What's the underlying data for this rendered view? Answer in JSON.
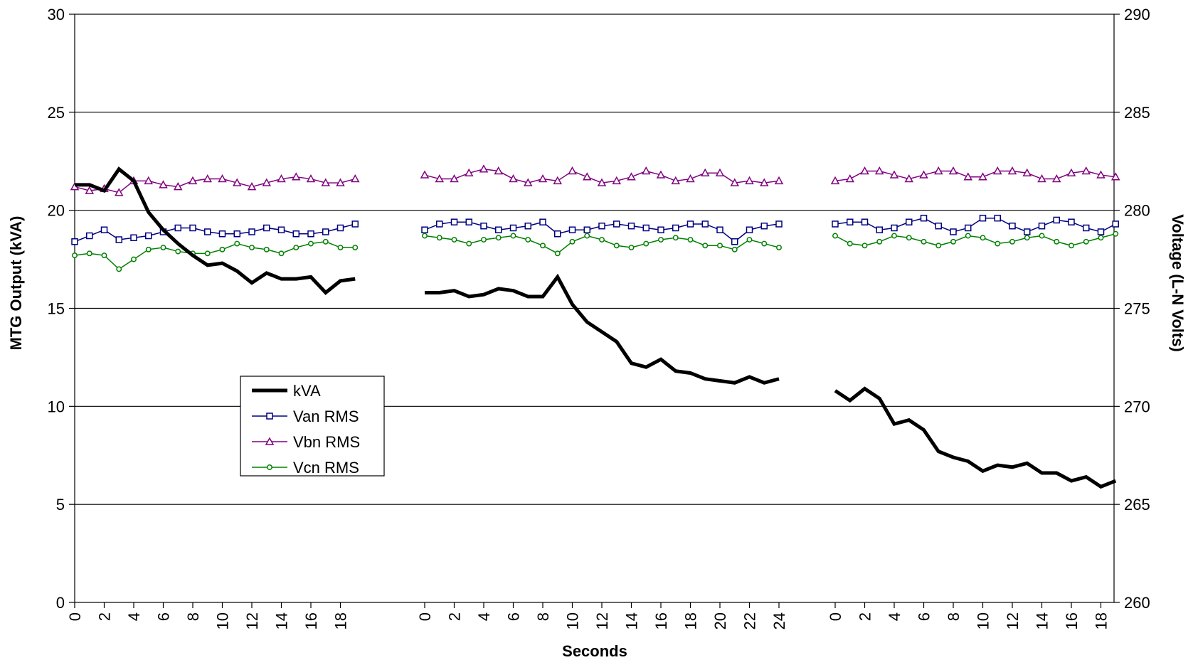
{
  "chart_data": {
    "type": "line",
    "xlabel": "Seconds",
    "ylabel_left": "MTG Output (kVA)",
    "ylabel_right": "Voltage (L-N Volts)",
    "ylim_left": [
      0,
      30
    ],
    "ylim_right": [
      260,
      290
    ],
    "yticks_left": [
      "0",
      "5",
      "10",
      "15",
      "20",
      "25",
      "30"
    ],
    "yticks_right": [
      "260",
      "265",
      "270",
      "275",
      "280",
      "285",
      "290"
    ],
    "grid": "horizontal major gridlines",
    "legend_position": "center-left",
    "segments": [
      {
        "x": [
          0,
          1,
          2,
          3,
          4,
          5,
          6,
          7,
          8,
          9,
          10,
          11,
          12,
          13,
          14,
          15,
          16,
          17,
          18,
          19
        ],
        "x_tick_labels": [
          "0",
          "2",
          "4",
          "6",
          "8",
          "10",
          "12",
          "14",
          "16",
          "18"
        ],
        "series": [
          {
            "name": "kVA",
            "axis": "left",
            "values": [
              21.3,
              21.3,
              21.0,
              22.1,
              21.5,
              19.9,
              19.0,
              18.3,
              17.7,
              17.2,
              17.3,
              16.9,
              16.3,
              16.8,
              16.5,
              16.5,
              16.6,
              15.8,
              16.4,
              16.5
            ]
          },
          {
            "name": "Van RMS",
            "axis": "right",
            "values": [
              278.4,
              278.7,
              279.0,
              278.5,
              278.6,
              278.7,
              278.9,
              279.1,
              279.1,
              278.9,
              278.8,
              278.8,
              278.9,
              279.1,
              279.0,
              278.8,
              278.8,
              278.9,
              279.1,
              279.3
            ]
          },
          {
            "name": "Vbn RMS",
            "axis": "right",
            "values": [
              281.2,
              281.0,
              281.1,
              280.9,
              281.5,
              281.5,
              281.3,
              281.2,
              281.5,
              281.6,
              281.6,
              281.4,
              281.2,
              281.4,
              281.6,
              281.7,
              281.6,
              281.4,
              281.4,
              281.6
            ]
          },
          {
            "name": "Vcn RMS",
            "axis": "right",
            "values": [
              277.7,
              277.8,
              277.7,
              277.0,
              277.5,
              278.0,
              278.1,
              277.9,
              277.8,
              277.8,
              278.0,
              278.3,
              278.1,
              278.0,
              277.8,
              278.1,
              278.3,
              278.4,
              278.1,
              278.1
            ]
          }
        ]
      },
      {
        "x": [
          0,
          1,
          2,
          3,
          4,
          5,
          6,
          7,
          8,
          9,
          10,
          11,
          12,
          13,
          14,
          15,
          16,
          17,
          18,
          19,
          20,
          21,
          22,
          23,
          24
        ],
        "x_tick_labels": [
          "0",
          "2",
          "4",
          "6",
          "8",
          "10",
          "12",
          "14",
          "16",
          "18",
          "20",
          "22",
          "24"
        ],
        "series": [
          {
            "name": "kVA",
            "axis": "left",
            "values": [
              15.8,
              15.8,
              15.9,
              15.6,
              15.7,
              16.0,
              15.9,
              15.6,
              15.6,
              16.6,
              15.2,
              14.3,
              13.8,
              13.3,
              12.2,
              12.0,
              12.4,
              11.8,
              11.7,
              11.4,
              11.3,
              11.2,
              11.5,
              11.2,
              11.4
            ]
          },
          {
            "name": "Van RMS",
            "axis": "right",
            "values": [
              279.0,
              279.3,
              279.4,
              279.4,
              279.2,
              279.0,
              279.1,
              279.2,
              279.4,
              278.8,
              279.0,
              279.0,
              279.2,
              279.3,
              279.2,
              279.1,
              279.0,
              279.1,
              279.3,
              279.3,
              279.0,
              278.4,
              279.0,
              279.2,
              279.3
            ]
          },
          {
            "name": "Vbn RMS",
            "axis": "right",
            "values": [
              281.8,
              281.6,
              281.6,
              281.9,
              282.1,
              282.0,
              281.6,
              281.4,
              281.6,
              281.5,
              282.0,
              281.7,
              281.4,
              281.5,
              281.7,
              282.0,
              281.8,
              281.5,
              281.6,
              281.9,
              281.9,
              281.4,
              281.5,
              281.4,
              281.5
            ]
          },
          {
            "name": "Vcn RMS",
            "axis": "right",
            "values": [
              278.7,
              278.6,
              278.5,
              278.3,
              278.5,
              278.6,
              278.7,
              278.5,
              278.2,
              277.8,
              278.4,
              278.7,
              278.5,
              278.2,
              278.1,
              278.3,
              278.5,
              278.6,
              278.5,
              278.2,
              278.2,
              278.0,
              278.5,
              278.3,
              278.1
            ]
          }
        ]
      },
      {
        "x": [
          0,
          1,
          2,
          3,
          4,
          5,
          6,
          7,
          8,
          9,
          10,
          11,
          12,
          13,
          14,
          15,
          16,
          17,
          18,
          19
        ],
        "x_tick_labels": [
          "0",
          "2",
          "4",
          "6",
          "8",
          "10",
          "12",
          "14",
          "16",
          "18"
        ],
        "series": [
          {
            "name": "kVA",
            "axis": "left",
            "values": [
              10.8,
              10.3,
              10.9,
              10.4,
              9.1,
              9.3,
              8.8,
              7.7,
              7.4,
              7.2,
              6.7,
              7.0,
              6.9,
              7.1,
              6.6,
              6.6,
              6.2,
              6.4,
              5.9,
              6.2
            ]
          },
          {
            "name": "Van RMS",
            "axis": "right",
            "values": [
              279.3,
              279.4,
              279.4,
              279.0,
              279.1,
              279.4,
              279.6,
              279.2,
              278.9,
              279.1,
              279.6,
              279.6,
              279.2,
              278.9,
              279.2,
              279.5,
              279.4,
              279.1,
              278.9,
              279.3
            ]
          },
          {
            "name": "Vbn RMS",
            "axis": "right",
            "values": [
              281.5,
              281.6,
              282.0,
              282.0,
              281.8,
              281.6,
              281.8,
              282.0,
              282.0,
              281.7,
              281.7,
              282.0,
              282.0,
              281.9,
              281.6,
              281.6,
              281.9,
              282.0,
              281.8,
              281.7
            ]
          },
          {
            "name": "Vcn RMS",
            "axis": "right",
            "values": [
              278.7,
              278.3,
              278.2,
              278.4,
              278.7,
              278.6,
              278.4,
              278.2,
              278.4,
              278.7,
              278.6,
              278.3,
              278.4,
              278.6,
              278.7,
              278.4,
              278.2,
              278.4,
              278.6,
              278.8
            ]
          }
        ]
      }
    ],
    "legend": [
      {
        "name": "kVA",
        "color": "#000000",
        "marker": "none"
      },
      {
        "name": "Van RMS",
        "color": "#000080",
        "marker": "square"
      },
      {
        "name": "Vbn RMS",
        "color": "#800080",
        "marker": "triangle"
      },
      {
        "name": "Vcn RMS",
        "color": "#008000",
        "marker": "circle"
      }
    ]
  }
}
